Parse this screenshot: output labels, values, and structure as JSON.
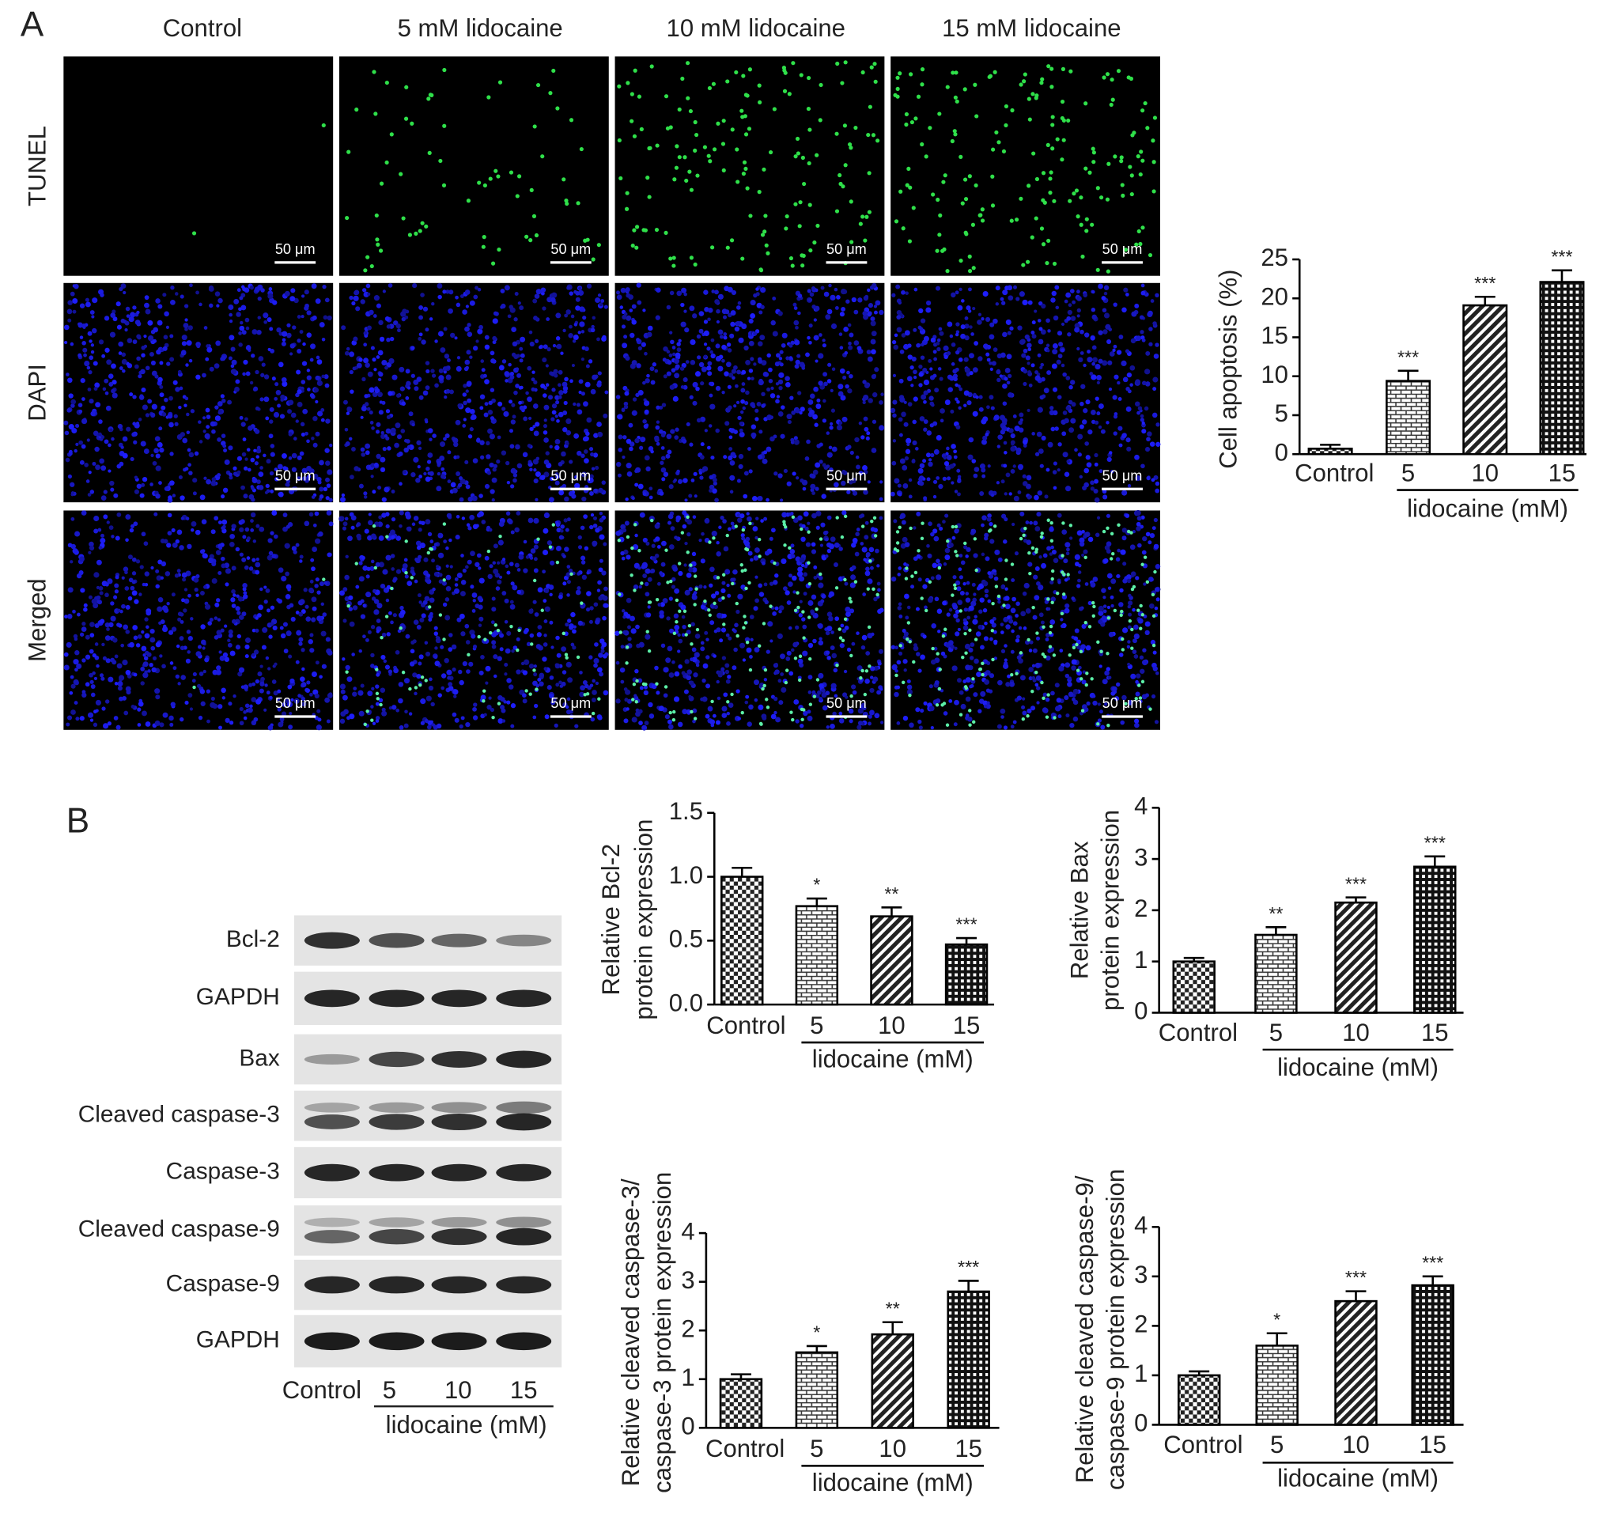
{
  "panel_a": {
    "label": "A",
    "columns": [
      "Control",
      "5 mM lidocaine",
      "10 mM lidocaine",
      "15 mM lidocaine"
    ],
    "rows": [
      "TUNEL",
      "DAPI",
      "Merged"
    ],
    "scale_bar": "50 μm"
  },
  "panel_b": {
    "label": "B",
    "blot_rows": [
      "Bcl-2",
      "GAPDH",
      "Bax",
      "Cleaved caspase-3",
      "Caspase-3",
      "Cleaved caspase-9",
      "Caspase-9",
      "GAPDH"
    ],
    "blot_lanes": [
      "Control",
      "5",
      "10",
      "15"
    ],
    "blot_group": "lidocaine (mM)"
  },
  "chart_data": [
    {
      "type": "bar",
      "y_label": [
        "Cell apoptosis (%)"
      ],
      "categories": [
        "Control",
        "5",
        "10",
        "15"
      ],
      "group_label": "lidocaine (mM)",
      "values": [
        0.7,
        9.4,
        19.1,
        22.1
      ],
      "errors": [
        0.5,
        1.3,
        1.1,
        1.5
      ],
      "significance": [
        null,
        "***",
        "***",
        "***"
      ],
      "ylim": [
        0,
        25
      ],
      "yticks": [
        0,
        5,
        10,
        15,
        20,
        25
      ],
      "bar_patterns": [
        "checker",
        "brick",
        "diagonal",
        "grid"
      ],
      "color": "#000000"
    },
    {
      "type": "bar",
      "y_label": [
        "Relative Bcl-2",
        "protein expression"
      ],
      "categories": [
        "Control",
        "5",
        "10",
        "15"
      ],
      "group_label": "lidocaine (mM)",
      "values": [
        1.0,
        0.77,
        0.69,
        0.47
      ],
      "errors": [
        0.07,
        0.06,
        0.07,
        0.05
      ],
      "significance": [
        null,
        "*",
        "**",
        "***"
      ],
      "ylim": [
        0,
        1.5
      ],
      "yticks": [
        {
          "value": 0,
          "label": "0.0"
        },
        0.5,
        {
          "value": 1,
          "label": "1.0"
        },
        1.5
      ],
      "bar_patterns": [
        "checker",
        "brick",
        "diagonal",
        "grid"
      ],
      "color": "#000000"
    },
    {
      "type": "bar",
      "y_label": [
        "Relative Bax",
        "protein expression"
      ],
      "categories": [
        "Control",
        "5",
        "10",
        "15"
      ],
      "group_label": "lidocaine (mM)",
      "values": [
        1.0,
        1.52,
        2.15,
        2.85
      ],
      "errors": [
        0.07,
        0.15,
        0.1,
        0.2
      ],
      "significance": [
        null,
        "**",
        "***",
        "***"
      ],
      "ylim": [
        0,
        4
      ],
      "yticks": [
        0,
        1,
        2,
        3,
        4
      ],
      "bar_patterns": [
        "checker",
        "brick",
        "diagonal",
        "grid"
      ],
      "color": "#000000"
    },
    {
      "type": "bar",
      "y_label": [
        "Relative cleaved caspase-3/",
        "caspase-3 protein expression"
      ],
      "categories": [
        "Control",
        "5",
        "10",
        "15"
      ],
      "group_label": "lidocaine (mM)",
      "values": [
        1.0,
        1.55,
        1.92,
        2.8
      ],
      "errors": [
        0.1,
        0.13,
        0.25,
        0.22
      ],
      "significance": [
        null,
        "*",
        "**",
        "***"
      ],
      "ylim": [
        0,
        4
      ],
      "yticks": [
        0,
        1,
        2,
        3,
        4
      ],
      "bar_patterns": [
        "checker",
        "brick",
        "diagonal",
        "grid"
      ],
      "color": "#000000"
    },
    {
      "type": "bar",
      "y_label": [
        "Relative cleaved caspase-9/",
        "caspase-9 protein expression"
      ],
      "categories": [
        "Control",
        "5",
        "10",
        "15"
      ],
      "group_label": "lidocaine (mM)",
      "values": [
        1.0,
        1.6,
        2.5,
        2.82
      ],
      "errors": [
        0.08,
        0.25,
        0.2,
        0.18
      ],
      "significance": [
        null,
        "*",
        "***",
        "***"
      ],
      "ylim": [
        0,
        4
      ],
      "yticks": [
        0,
        1,
        2,
        3,
        4
      ],
      "bar_patterns": [
        "checker",
        "brick",
        "diagonal",
        "grid"
      ],
      "color": "#000000"
    }
  ]
}
